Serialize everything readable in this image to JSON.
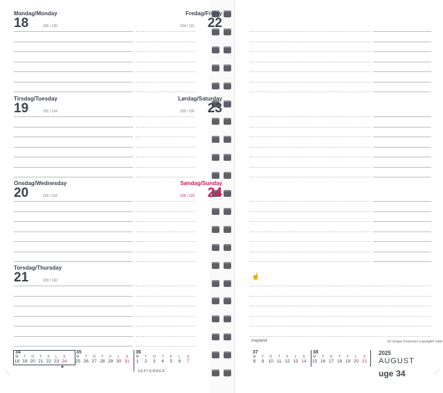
{
  "left_days": [
    {
      "name": "Mandag/Monday",
      "num": "18",
      "count": "230 / 135"
    },
    {
      "name": "Tirsdag/Tuesday",
      "num": "19",
      "count": "231 / 134"
    },
    {
      "name": "Onsdag/Wednesday",
      "num": "20",
      "count": "232 / 133"
    },
    {
      "name": "Torsdag/Thursday",
      "num": "21",
      "count": "233 / 132"
    }
  ],
  "right_days": [
    {
      "name": "Fredag/Friday",
      "num": "22",
      "count": "234 / 131"
    },
    {
      "name": "Lørdag/Saturday",
      "num": "23",
      "count": "235 / 130"
    },
    {
      "name": "Søndag/Sunday",
      "num": "24",
      "count": "236 / 129"
    }
  ],
  "mini_left": {
    "weeks": [
      "34",
      "35",
      "36"
    ],
    "day_letters_34": [
      "M",
      "T",
      "O",
      "T",
      "F",
      "L",
      "S"
    ],
    "dates_34": [
      "18",
      "19",
      "20",
      "21",
      "22",
      "23",
      "24"
    ],
    "day_letters_35": [
      "M",
      "T",
      "O",
      "T",
      "F",
      "L",
      "S"
    ],
    "dates_35": [
      "25",
      "26",
      "27",
      "28",
      "29",
      "30",
      "31"
    ],
    "day_letters_36": [
      "M",
      "T",
      "O",
      "T",
      "F",
      "L",
      "S"
    ],
    "dates_36": [
      "1",
      "2",
      "3",
      "4",
      "5",
      "6",
      "7"
    ],
    "month_label": "SEPTEMBER"
  },
  "mini_right": {
    "weeks": [
      "37",
      "38"
    ],
    "day_letters_37": [
      "M",
      "T",
      "O",
      "T",
      "F",
      "L",
      "S"
    ],
    "dates_37": [
      "8",
      "9",
      "10",
      "11",
      "12",
      "13",
      "14"
    ],
    "day_letters_38": [
      "M",
      "T",
      "O",
      "T",
      "F",
      "L",
      "S"
    ],
    "dates_38": [
      "15",
      "16",
      "17",
      "18",
      "19",
      "20",
      "21"
    ]
  },
  "brand": "mayland",
  "copyright": "EC Design Protection/ Copyright® 2005",
  "year": "2025",
  "month": "AUGUST",
  "week_label": "uge",
  "week_number": "34",
  "colors": {
    "text": "#3e434e",
    "sunday": "#d01c5e",
    "lines": "#b9bcc2",
    "rings": "#5e6066"
  }
}
